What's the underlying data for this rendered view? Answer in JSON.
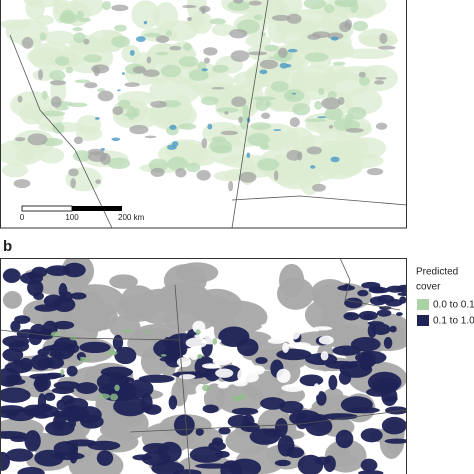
{
  "panels": [
    {
      "scale_bar": {
        "labels": [
          "0",
          "100",
          "200 km"
        ]
      }
    },
    {
      "label": "b",
      "legend": {
        "title": [
          "Predicted",
          "cover"
        ],
        "items": [
          "0.0 to 0.1",
          "0.1 to 1.0"
        ]
      }
    }
  ]
}
